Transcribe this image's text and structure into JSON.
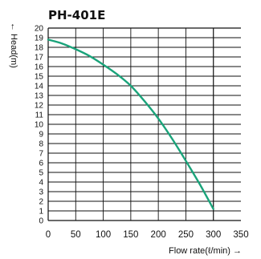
{
  "chart_data": {
    "type": "line",
    "title": "PH-401E",
    "xlabel": "Flow rate(ℓ/min) →",
    "ylabel": "← Head(m)",
    "xlim": [
      0,
      350
    ],
    "ylim": [
      0,
      20
    ],
    "x_ticks": [
      "0",
      "50",
      "100",
      "150",
      "200",
      "250",
      "300",
      "350"
    ],
    "y_ticks": [
      "0",
      "1",
      "2",
      "3",
      "4",
      "5",
      "6",
      "7",
      "8",
      "9",
      "10",
      "11",
      "12",
      "13",
      "14",
      "15",
      "16",
      "17",
      "18",
      "19",
      "20"
    ],
    "grid": true,
    "colors": {
      "curve": "#1aa37a",
      "grid": "#111111"
    },
    "series": [
      {
        "x": [
          0,
          25,
          50,
          75,
          100,
          125,
          150,
          175,
          200,
          225,
          250,
          275,
          300
        ],
        "y": [
          18.8,
          18.4,
          17.8,
          17.1,
          16.2,
          15.2,
          14.0,
          12.4,
          10.6,
          8.5,
          6.2,
          3.8,
          1.2
        ]
      }
    ]
  }
}
